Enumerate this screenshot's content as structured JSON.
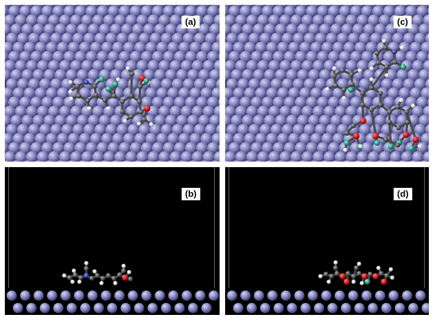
{
  "panels": [
    {
      "id": "a",
      "label": "(a)",
      "view": "top"
    },
    {
      "id": "b",
      "label": "(b)",
      "view": "side"
    },
    {
      "id": "c",
      "label": "(c)",
      "view": "top"
    },
    {
      "id": "d",
      "label": "(d)",
      "view": "side"
    }
  ],
  "colors": {
    "background_side": "#000000",
    "surface_atom": "#7d7db8",
    "carbon": "#5a5a5a",
    "hydrogen": "#f0f0f0",
    "oxygen": "#d62020",
    "nitrogen": "#3a4bb8",
    "highlight": "#27a887"
  }
}
